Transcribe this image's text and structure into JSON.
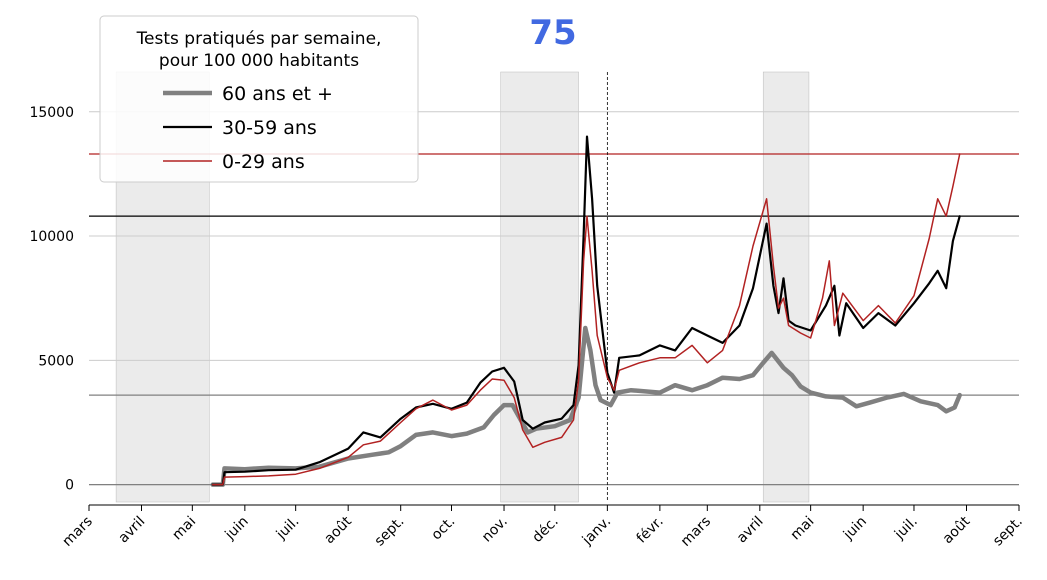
{
  "chart_data": {
    "type": "line",
    "title": "75",
    "title_color": "#4169e1",
    "ylim": [
      -700,
      16600
    ],
    "yticks": [
      0,
      5000,
      10000,
      15000
    ],
    "y_grid": true,
    "x_axis": {
      "start": "2020-03-01",
      "end": "2021-09-01",
      "tick_dates": [
        "2020-03-01",
        "2020-04-01",
        "2020-05-01",
        "2020-06-01",
        "2020-07-01",
        "2020-08-01",
        "2020-09-01",
        "2020-10-01",
        "2020-11-01",
        "2020-12-01",
        "2021-01-01",
        "2021-02-01",
        "2021-03-01",
        "2021-04-01",
        "2021-05-01",
        "2021-06-01",
        "2021-07-01",
        "2021-08-01",
        "2021-09-01"
      ],
      "tick_labels": [
        "mars",
        "avril",
        "mai",
        "juin",
        "juil.",
        "août",
        "sept.",
        "oct.",
        "nov.",
        "déc.",
        "janv.",
        "févr.",
        "mars",
        "avril",
        "mai",
        "juin",
        "juil.",
        "août",
        "sept."
      ]
    },
    "shaded_periods": [
      [
        "2020-03-17",
        "2020-05-11"
      ],
      [
        "2020-10-30",
        "2020-12-15"
      ],
      [
        "2021-04-03",
        "2021-04-30"
      ]
    ],
    "vline_date": "2021-01-01",
    "hlines": [
      {
        "value": 13300,
        "color": "#b22222"
      },
      {
        "value": 10800,
        "color": "#000000"
      },
      {
        "value": 3600,
        "color": "#808080"
      },
      {
        "value": 0,
        "color": "#808080"
      }
    ],
    "legend": {
      "title": [
        "Tests pratiqués par semaine,",
        "pour 100 000 habitants"
      ],
      "position": "top-left"
    },
    "series": [
      {
        "name": "60 ans et +",
        "color": "#808080",
        "linewidth": 4.5,
        "points": [
          [
            "2020-05-13",
            0
          ],
          [
            "2020-05-19",
            0
          ],
          [
            "2020-05-20",
            650
          ],
          [
            "2020-06-01",
            620
          ],
          [
            "2020-06-15",
            680
          ],
          [
            "2020-07-01",
            650
          ],
          [
            "2020-07-15",
            720
          ],
          [
            "2020-08-01",
            1050
          ],
          [
            "2020-08-15",
            1200
          ],
          [
            "2020-08-25",
            1300
          ],
          [
            "2020-09-01",
            1550
          ],
          [
            "2020-09-10",
            2000
          ],
          [
            "2020-09-20",
            2100
          ],
          [
            "2020-10-01",
            1950
          ],
          [
            "2020-10-10",
            2050
          ],
          [
            "2020-10-20",
            2300
          ],
          [
            "2020-10-26",
            2800
          ],
          [
            "2020-11-01",
            3200
          ],
          [
            "2020-11-06",
            3200
          ],
          [
            "2020-11-15",
            2100
          ],
          [
            "2020-11-20",
            2250
          ],
          [
            "2020-12-01",
            2350
          ],
          [
            "2020-12-10",
            2600
          ],
          [
            "2020-12-15",
            3500
          ],
          [
            "2020-12-19",
            6300
          ],
          [
            "2020-12-22",
            5400
          ],
          [
            "2020-12-25",
            4000
          ],
          [
            "2020-12-28",
            3400
          ],
          [
            "2021-01-03",
            3200
          ],
          [
            "2021-01-07",
            3700
          ],
          [
            "2021-01-15",
            3800
          ],
          [
            "2021-02-01",
            3700
          ],
          [
            "2021-02-10",
            4000
          ],
          [
            "2021-02-20",
            3800
          ],
          [
            "2021-03-01",
            4000
          ],
          [
            "2021-03-10",
            4300
          ],
          [
            "2021-03-20",
            4250
          ],
          [
            "2021-03-28",
            4400
          ],
          [
            "2021-04-03",
            4900
          ],
          [
            "2021-04-08",
            5300
          ],
          [
            "2021-04-15",
            4700
          ],
          [
            "2021-04-20",
            4400
          ],
          [
            "2021-04-25",
            3950
          ],
          [
            "2021-05-01",
            3700
          ],
          [
            "2021-05-10",
            3550
          ],
          [
            "2021-05-20",
            3500
          ],
          [
            "2021-05-28",
            3150
          ],
          [
            "2021-06-05",
            3300
          ],
          [
            "2021-06-15",
            3500
          ],
          [
            "2021-06-25",
            3650
          ],
          [
            "2021-07-05",
            3350
          ],
          [
            "2021-07-15",
            3200
          ],
          [
            "2021-07-20",
            2950
          ],
          [
            "2021-07-25",
            3100
          ],
          [
            "2021-07-28",
            3600
          ]
        ]
      },
      {
        "name": "30-59 ans",
        "color": "#000000",
        "linewidth": 2.2,
        "points": [
          [
            "2020-05-13",
            0
          ],
          [
            "2020-05-19",
            0
          ],
          [
            "2020-05-20",
            500
          ],
          [
            "2020-06-01",
            520
          ],
          [
            "2020-06-15",
            580
          ],
          [
            "2020-07-01",
            600
          ],
          [
            "2020-07-15",
            900
          ],
          [
            "2020-08-01",
            1450
          ],
          [
            "2020-08-10",
            2100
          ],
          [
            "2020-08-20",
            1900
          ],
          [
            "2020-09-01",
            2650
          ],
          [
            "2020-09-10",
            3100
          ],
          [
            "2020-09-20",
            3250
          ],
          [
            "2020-10-01",
            3050
          ],
          [
            "2020-10-10",
            3300
          ],
          [
            "2020-10-18",
            4100
          ],
          [
            "2020-10-25",
            4550
          ],
          [
            "2020-11-01",
            4700
          ],
          [
            "2020-11-07",
            4150
          ],
          [
            "2020-11-12",
            2600
          ],
          [
            "2020-11-18",
            2250
          ],
          [
            "2020-11-25",
            2500
          ],
          [
            "2020-12-05",
            2650
          ],
          [
            "2020-12-12",
            3200
          ],
          [
            "2020-12-15",
            4800
          ],
          [
            "2020-12-18",
            10000
          ],
          [
            "2020-12-20",
            14000
          ],
          [
            "2020-12-23",
            11500
          ],
          [
            "2020-12-26",
            8000
          ],
          [
            "2021-01-01",
            4500
          ],
          [
            "2021-01-05",
            3700
          ],
          [
            "2021-01-08",
            5100
          ],
          [
            "2021-01-20",
            5200
          ],
          [
            "2021-02-01",
            5600
          ],
          [
            "2021-02-10",
            5400
          ],
          [
            "2021-02-20",
            6300
          ],
          [
            "2021-03-01",
            6000
          ],
          [
            "2021-03-10",
            5700
          ],
          [
            "2021-03-20",
            6400
          ],
          [
            "2021-03-28",
            7900
          ],
          [
            "2021-04-05",
            10500
          ],
          [
            "2021-04-09",
            8000
          ],
          [
            "2021-04-12",
            6900
          ],
          [
            "2021-04-15",
            8300
          ],
          [
            "2021-04-18",
            6600
          ],
          [
            "2021-04-22",
            6400
          ],
          [
            "2021-05-01",
            6200
          ],
          [
            "2021-05-10",
            7200
          ],
          [
            "2021-05-15",
            8000
          ],
          [
            "2021-05-18",
            6000
          ],
          [
            "2021-05-22",
            7300
          ],
          [
            "2021-06-01",
            6300
          ],
          [
            "2021-06-10",
            6900
          ],
          [
            "2021-06-20",
            6400
          ],
          [
            "2021-07-01",
            7300
          ],
          [
            "2021-07-10",
            8100
          ],
          [
            "2021-07-15",
            8600
          ],
          [
            "2021-07-20",
            7900
          ],
          [
            "2021-07-24",
            9800
          ],
          [
            "2021-07-28",
            10800
          ]
        ]
      },
      {
        "name": "0-29 ans",
        "color": "#b22222",
        "linewidth": 1.5,
        "points": [
          [
            "2020-05-13",
            0
          ],
          [
            "2020-05-19",
            0
          ],
          [
            "2020-05-20",
            300
          ],
          [
            "2020-06-01",
            320
          ],
          [
            "2020-06-15",
            350
          ],
          [
            "2020-07-01",
            420
          ],
          [
            "2020-07-15",
            650
          ],
          [
            "2020-08-01",
            1100
          ],
          [
            "2020-08-10",
            1600
          ],
          [
            "2020-08-20",
            1750
          ],
          [
            "2020-09-01",
            2500
          ],
          [
            "2020-09-10",
            3050
          ],
          [
            "2020-09-20",
            3400
          ],
          [
            "2020-10-01",
            3000
          ],
          [
            "2020-10-10",
            3200
          ],
          [
            "2020-10-18",
            3800
          ],
          [
            "2020-10-25",
            4250
          ],
          [
            "2020-11-01",
            4200
          ],
          [
            "2020-11-07",
            3500
          ],
          [
            "2020-11-12",
            2200
          ],
          [
            "2020-11-18",
            1500
          ],
          [
            "2020-11-25",
            1700
          ],
          [
            "2020-12-05",
            1900
          ],
          [
            "2020-12-12",
            2600
          ],
          [
            "2020-12-15",
            4200
          ],
          [
            "2020-12-18",
            9000
          ],
          [
            "2020-12-20",
            10800
          ],
          [
            "2020-12-23",
            8600
          ],
          [
            "2020-12-26",
            6000
          ],
          [
            "2021-01-01",
            4300
          ],
          [
            "2021-01-05",
            3800
          ],
          [
            "2021-01-08",
            4600
          ],
          [
            "2021-01-20",
            4900
          ],
          [
            "2021-02-01",
            5100
          ],
          [
            "2021-02-10",
            5100
          ],
          [
            "2021-02-20",
            5600
          ],
          [
            "2021-03-01",
            4900
          ],
          [
            "2021-03-10",
            5400
          ],
          [
            "2021-03-20",
            7200
          ],
          [
            "2021-03-28",
            9600
          ],
          [
            "2021-04-05",
            11500
          ],
          [
            "2021-04-09",
            8800
          ],
          [
            "2021-04-12",
            7100
          ],
          [
            "2021-04-15",
            7500
          ],
          [
            "2021-04-18",
            6400
          ],
          [
            "2021-04-25",
            6100
          ],
          [
            "2021-05-01",
            5900
          ],
          [
            "2021-05-08",
            7500
          ],
          [
            "2021-05-12",
            9000
          ],
          [
            "2021-05-15",
            6400
          ],
          [
            "2021-05-20",
            7700
          ],
          [
            "2021-06-01",
            6600
          ],
          [
            "2021-06-10",
            7200
          ],
          [
            "2021-06-20",
            6500
          ],
          [
            "2021-07-01",
            7600
          ],
          [
            "2021-07-10",
            9900
          ],
          [
            "2021-07-15",
            11500
          ],
          [
            "2021-07-20",
            10800
          ],
          [
            "2021-07-24",
            12000
          ],
          [
            "2021-07-28",
            13300
          ]
        ]
      }
    ]
  }
}
